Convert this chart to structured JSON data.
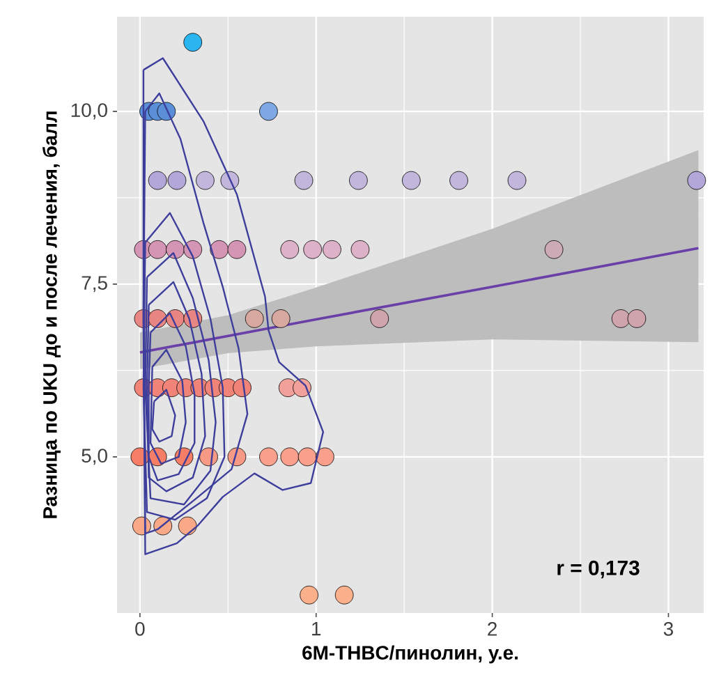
{
  "chart_data": {
    "type": "scatter",
    "xlabel": "6M-THBC/пинолин, у.е.",
    "ylabel": "Разница по UKU до и после лечения, балл",
    "xlim": [
      -0.13,
      3.2
    ],
    "ylim": [
      2.74,
      11.37
    ],
    "xticks": [
      0,
      1,
      2,
      3
    ],
    "yticks": [
      {
        "value": 5,
        "label": "5,0"
      },
      {
        "value": 7.5,
        "label": "7,5"
      },
      {
        "value": 10,
        "label": "10,0"
      }
    ],
    "grid": true,
    "annotations": [
      "r = 0,173"
    ],
    "series": [
      {
        "marker": "circle",
        "x": [
          0.3,
          0.05,
          0.1,
          0.15,
          0.73,
          0.1,
          0.21,
          0.37,
          0.51,
          0.93,
          1.24,
          1.54,
          1.81,
          2.14,
          3.16,
          0.02,
          0.1,
          0.2,
          0.3,
          0.45,
          0.55,
          0.85,
          0.98,
          1.09,
          1.25,
          2.35,
          0.02,
          0.1,
          0.2,
          0.3,
          0.65,
          0.8,
          1.36,
          2.73,
          2.82,
          0.02,
          0.1,
          0.18,
          0.26,
          0.34,
          0.42,
          0.5,
          0.58,
          0.84,
          0.92,
          0.0,
          0.1,
          0.25,
          0.39,
          0.55,
          0.73,
          0.85,
          0.95,
          1.05,
          0.01,
          0.13,
          0.27,
          0.96,
          1.16
        ],
        "values": [
          11,
          10,
          10,
          10,
          10,
          9,
          9,
          9,
          9,
          9,
          9,
          9,
          9,
          9,
          9,
          8,
          8,
          8,
          8,
          8,
          8,
          8,
          8,
          8,
          8,
          8,
          7,
          7,
          7,
          7,
          7,
          7,
          7,
          7,
          7,
          6,
          6,
          6,
          6,
          6,
          6,
          6,
          6,
          6,
          6,
          5,
          5,
          5,
          5,
          5,
          5,
          5,
          5,
          5,
          4,
          4,
          4,
          3,
          3
        ],
        "colors": [
          "#2bb5ef",
          "#5a8fd8",
          "#5a8fd8",
          "#5a8fd8",
          "#7ea7e3",
          "#b3a6d8",
          "#b3a6d8",
          "#c2b6dc",
          "#c2b6dc",
          "#c2b6dc",
          "#c2b6dc",
          "#c2b6dc",
          "#c2b6dc",
          "#c2b6dc",
          "#b3a6d8",
          "#d495b4",
          "#d495b4",
          "#d495b4",
          "#d495b4",
          "#d495b4",
          "#d495b4",
          "#ddb2c8",
          "#ddb2c8",
          "#ddb2c8",
          "#ddb2c8",
          "#ccaab6",
          "#e88684",
          "#e88684",
          "#e88684",
          "#e88684",
          "#d6a8a0",
          "#d6a8a0",
          "#cfa4ac",
          "#cfa4ac",
          "#cfa4ac",
          "#f08478",
          "#f08478",
          "#f08478",
          "#f08478",
          "#f08478",
          "#f08478",
          "#f08478",
          "#f08478",
          "#f1a199",
          "#f1a199",
          "#f77e66",
          "#f77e66",
          "#f77e66",
          "#f79a85",
          "#f79a85",
          "#f8a08c",
          "#f8a08c",
          "#f8a08c",
          "#f8a08c",
          "#f9a888",
          "#f9a888",
          "#f9a888",
          "#fab08a",
          "#fab08a"
        ]
      },
      {
        "type": "line",
        "color": "#6a3fa8",
        "x": [
          0,
          0.5,
          1,
          2,
          3.17
        ],
        "values": [
          6.51,
          6.75,
          6.99,
          7.46,
          8.02
        ],
        "lower": [
          6.27,
          6.5,
          6.6,
          6.7,
          6.66
        ],
        "upper": [
          6.8,
          7.05,
          7.45,
          8.3,
          9.44
        ]
      }
    ]
  }
}
